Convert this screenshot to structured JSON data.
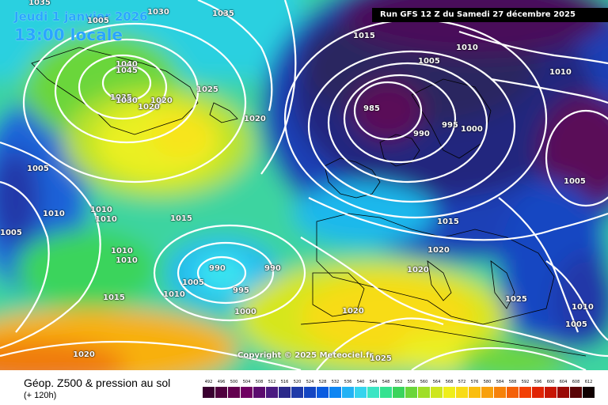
{
  "header": {
    "date_label": "Jeudi 1 janvier 2026",
    "time_label": "13:00 locale",
    "run_label": "Run GFS 12 Z du Samedi 27 décembre 2025"
  },
  "copyright": "Copyright © 2025 Meteociel.fr",
  "footer": {
    "title": "Géop. Z500 & pression au sol",
    "subtitle": "(+ 120h)"
  },
  "scale": {
    "labels": [
      "492",
      "496",
      "500",
      "504",
      "508",
      "512",
      "516",
      "520",
      "524",
      "528",
      "532",
      "536",
      "540",
      "544",
      "548",
      "552",
      "556",
      "560",
      "564",
      "568",
      "572",
      "576",
      "580",
      "584",
      "588",
      "592",
      "596",
      "600",
      "604",
      "608",
      "612"
    ],
    "colors": [
      "#3a0030",
      "#50003e",
      "#63004f",
      "#700062",
      "#5b0b6e",
      "#4a1a80",
      "#2c2a8a",
      "#1f3aa8",
      "#1446c2",
      "#0a5ce0",
      "#0f86f2",
      "#22b2f5",
      "#35d4ee",
      "#3ce5c4",
      "#34e290",
      "#3ad45c",
      "#6ad63a",
      "#9fde28",
      "#cee61e",
      "#efee1a",
      "#f8dc16",
      "#fabe10",
      "#f8a00c",
      "#f6820a",
      "#f46008",
      "#f24006",
      "#e02404",
      "#c81604",
      "#9a0a06",
      "#5a0406",
      "#100000"
    ]
  },
  "isobar_labels": [
    {
      "text": "1035"
    },
    {
      "text": "1030"
    },
    {
      "text": "1035"
    },
    {
      "text": "1015"
    },
    {
      "text": "1010"
    },
    {
      "text": "1005"
    },
    {
      "text": "1010"
    },
    {
      "text": "1040"
    },
    {
      "text": "1045"
    },
    {
      "text": "1035"
    },
    {
      "text": "1030"
    },
    {
      "text": "1020"
    },
    {
      "text": "1020"
    },
    {
      "text": "1025"
    },
    {
      "text": "1020"
    },
    {
      "text": "985"
    },
    {
      "text": "990"
    },
    {
      "text": "995"
    },
    {
      "text": "1000"
    },
    {
      "text": "1005"
    },
    {
      "text": "1005"
    },
    {
      "text": "1010"
    },
    {
      "text": "1010"
    },
    {
      "text": "1010"
    },
    {
      "text": "1005"
    },
    {
      "text": "1015"
    },
    {
      "text": "1015"
    },
    {
      "text": "1010"
    },
    {
      "text": "1010"
    },
    {
      "text": "990"
    },
    {
      "text": "990"
    },
    {
      "text": "1005"
    },
    {
      "text": "995"
    },
    {
      "text": "1020"
    },
    {
      "text": "1020"
    },
    {
      "text": "1015"
    },
    {
      "text": "1010"
    },
    {
      "text": "1000"
    },
    {
      "text": "1020"
    },
    {
      "text": "1025"
    },
    {
      "text": "1010"
    },
    {
      "text": "1005"
    },
    {
      "text": "1020"
    },
    {
      "text": "1025"
    },
    {
      "text": "1005"
    }
  ]
}
